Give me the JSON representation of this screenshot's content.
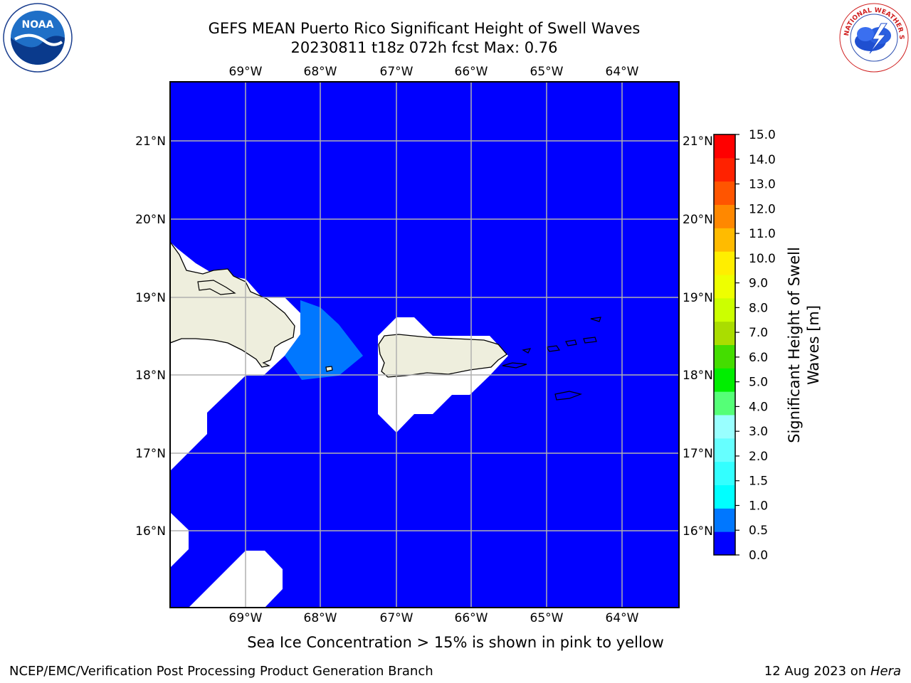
{
  "header": {
    "title_line1": "GEFS MEAN Puerto Rico Significant Height of Swell Waves",
    "title_line2": "20230811 t18z 072h fcst   Max: 0.76"
  },
  "logos": {
    "left": {
      "icon": "noaa-logo",
      "text": "NOAA"
    },
    "right": {
      "icon": "nws-logo",
      "text": "NATIONAL WEATHER SERVICE"
    }
  },
  "map": {
    "lon_labels": [
      "69°W",
      "68°W",
      "67°W",
      "66°W",
      "65°W",
      "64°W"
    ],
    "lat_labels": [
      "21°N",
      "20°N",
      "19°N",
      "18°N",
      "17°N",
      "16°N"
    ],
    "ocean_color": "#0000ff",
    "land_color": "#eeeedd",
    "swell_patch_color": "#0077ff",
    "mask_color": "#ffffff",
    "grid_color": "#b0b0b0"
  },
  "colorbar": {
    "label_line1": "Significant Height of Swell",
    "label_line2": "Waves [m]",
    "ticks": [
      "0.0",
      "0.5",
      "1.0",
      "1.5",
      "2.0",
      "3.0",
      "4.0",
      "5.0",
      "6.0",
      "7.0",
      "8.0",
      "9.0",
      "10.0",
      "11.0",
      "12.0",
      "13.0",
      "14.0",
      "15.0"
    ],
    "colors": [
      "#0000ff",
      "#0077ff",
      "#00ffff",
      "#33ffff",
      "#66ffff",
      "#99ffff",
      "#55ff77",
      "#00ee00",
      "#44dd00",
      "#aadd00",
      "#ccff00",
      "#eeff00",
      "#ffee00",
      "#ffbb00",
      "#ff8800",
      "#ff5500",
      "#ff2200",
      "#ff0000"
    ]
  },
  "footer": {
    "note": "Sea Ice Concentration > 15% is shown in pink to yellow",
    "left": "NCEP/EMC/Verification Post Processing Product Generation Branch",
    "right_prefix": "12 Aug 2023 on ",
    "right_italic": "Hera"
  }
}
